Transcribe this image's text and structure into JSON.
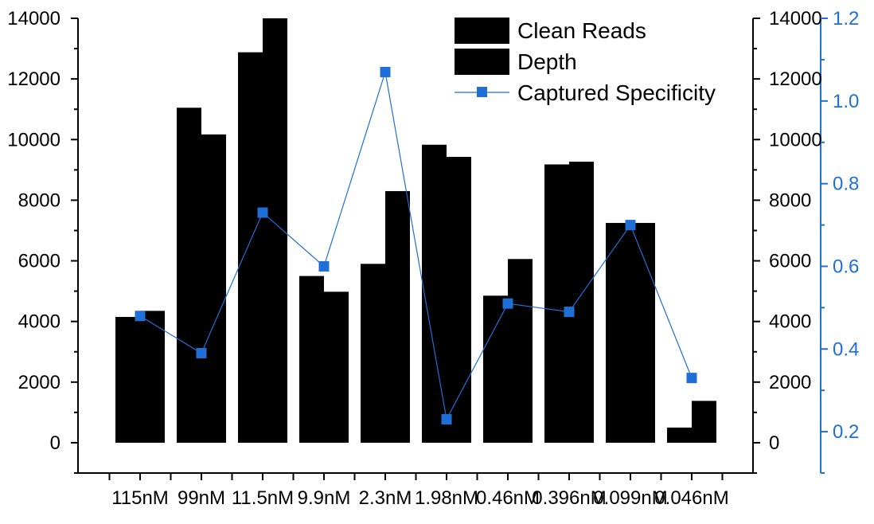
{
  "chart_data": {
    "type": "bar",
    "categories": [
      "115nM",
      "99nM",
      "11.5nM",
      "9.9nM",
      "2.3nM",
      "1.98nM",
      "0.46nM",
      "0.396nM",
      "0.099nM",
      "0.046nM"
    ],
    "series": [
      {
        "name": "Clean Reads",
        "type": "bar",
        "axis": "left",
        "color": "#000000",
        "values": [
          4150,
          11050,
          12880,
          5500,
          5900,
          9830,
          4850,
          9180,
          7250,
          500
        ]
      },
      {
        "name": "Depth",
        "type": "bar",
        "axis": "left",
        "color": "#000000",
        "values": [
          4350,
          10170,
          14000,
          4980,
          8300,
          9430,
          6060,
          9270,
          7250,
          1380
        ]
      },
      {
        "name": "Captured Specificity",
        "type": "line",
        "axis": "right-outer",
        "color": "#1f6fd6",
        "values": [
          0.48,
          0.39,
          0.73,
          0.6,
          1.07,
          0.23,
          0.51,
          0.49,
          0.7,
          0.33
        ]
      }
    ],
    "y_left": {
      "ylim": [
        -1000,
        14000
      ],
      "ticks": [
        "0",
        "2000",
        "4000",
        "6000",
        "8000",
        "10000",
        "12000",
        "14000"
      ]
    },
    "y_right_inner": {
      "ylim": [
        -1000,
        14000
      ],
      "ticks": [
        "0",
        "2000",
        "4000",
        "6000",
        "8000",
        "10000",
        "12000",
        "14000"
      ]
    },
    "y_right_outer": {
      "ylim": [
        0.1,
        1.2
      ],
      "ticks": [
        "0.2",
        "0.4",
        "0.6",
        "0.8",
        "1.0",
        "1.2"
      ],
      "color": "#1f6fd6"
    },
    "legend": {
      "placement": "top-right",
      "entries": [
        "Clean Reads",
        "Depth",
        "Captured Specificity"
      ]
    },
    "grid": false
  }
}
